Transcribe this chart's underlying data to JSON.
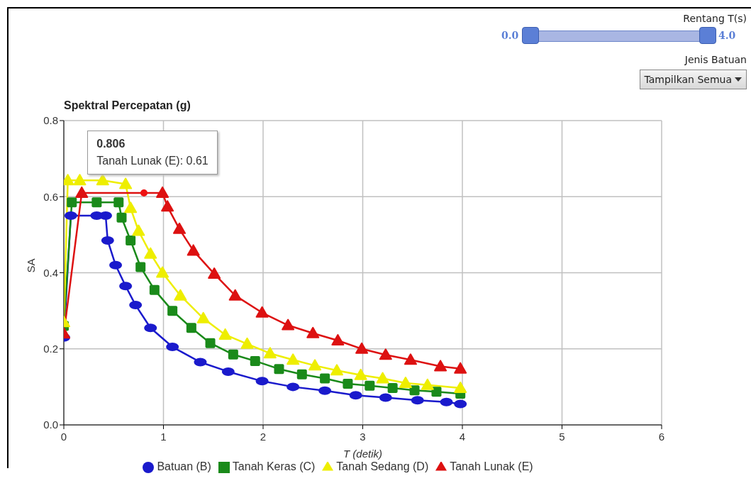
{
  "chart_data": {
    "type": "line",
    "title": "Spektral Percepatan (g)",
    "xlabel": "T (detik)",
    "ylabel": "SA",
    "xlim": [
      0,
      6
    ],
    "xticks": [
      0,
      1,
      2,
      3,
      4,
      5,
      6
    ],
    "ylim": [
      0,
      0.8
    ],
    "yticks": [
      {
        "value": 0,
        "label": "0.0"
      },
      {
        "value": 0.2,
        "label": "0.2"
      },
      {
        "value": 0.4,
        "label": "0.4"
      },
      {
        "value": 0.6,
        "label": "0.6"
      },
      {
        "value": 0.8,
        "label": "0.8"
      }
    ],
    "grid": true,
    "legend": "bottom",
    "line_style": "solid",
    "series": [
      {
        "name": "Batuan (B)",
        "color": "#1a1acc",
        "marker": "circle",
        "x": [
          0,
          0.07,
          0.33,
          0.42,
          0.44,
          0.52,
          0.62,
          0.72,
          0.87,
          1.09,
          1.37,
          1.65,
          1.99,
          2.3,
          2.62,
          2.93,
          3.23,
          3.55,
          3.84,
          3.98
        ],
        "values": [
          0.23,
          0.55,
          0.55,
          0.55,
          0.485,
          0.42,
          0.365,
          0.315,
          0.255,
          0.205,
          0.165,
          0.14,
          0.115,
          0.1,
          0.09,
          0.078,
          0.072,
          0.065,
          0.06,
          0.055
        ]
      },
      {
        "name": "Tanah Keras (C)",
        "color": "#1a8a1a",
        "marker": "square",
        "x": [
          0,
          0.08,
          0.33,
          0.55,
          0.58,
          0.67,
          0.77,
          0.91,
          1.09,
          1.28,
          1.47,
          1.7,
          1.92,
          2.16,
          2.39,
          2.62,
          2.85,
          3.07,
          3.3,
          3.52,
          3.74,
          3.98
        ],
        "values": [
          0.26,
          0.585,
          0.585,
          0.585,
          0.545,
          0.485,
          0.415,
          0.355,
          0.3,
          0.255,
          0.215,
          0.185,
          0.168,
          0.147,
          0.133,
          0.122,
          0.108,
          0.103,
          0.097,
          0.091,
          0.087,
          0.082
        ]
      },
      {
        "name": "Tanah Sedang (D)",
        "color": "#eeee00",
        "marker": "triangle",
        "x": [
          0,
          0.04,
          0.16,
          0.39,
          0.62,
          0.67,
          0.75,
          0.87,
          0.99,
          1.17,
          1.4,
          1.62,
          1.84,
          2.07,
          2.3,
          2.52,
          2.74,
          2.98,
          3.2,
          3.43,
          3.65,
          3.98
        ],
        "values": [
          0.27,
          0.643,
          0.643,
          0.643,
          0.633,
          0.57,
          0.51,
          0.45,
          0.4,
          0.34,
          0.28,
          0.237,
          0.213,
          0.188,
          0.171,
          0.156,
          0.143,
          0.131,
          0.122,
          0.11,
          0.105,
          0.097
        ]
      },
      {
        "name": "Tanah Lunak (E)",
        "color": "#dd1111",
        "marker": "triangle",
        "x": [
          0,
          0.18,
          0.99,
          1.04,
          1.16,
          1.3,
          1.51,
          1.72,
          1.99,
          2.25,
          2.5,
          2.75,
          2.99,
          3.23,
          3.48,
          3.78,
          3.98
        ],
        "values": [
          0.24,
          0.61,
          0.61,
          0.574,
          0.515,
          0.458,
          0.397,
          0.34,
          0.295,
          0.262,
          0.241,
          0.222,
          0.2,
          0.184,
          0.171,
          0.154,
          0.148
        ]
      }
    ],
    "annotations": [
      {
        "text": "0.806\nTanah Lunak (E): 0.61",
        "x": 0.806,
        "y": 0.61
      },
      "Rentang T(s)",
      "0.0",
      "4.0",
      "Jenis Batuan",
      "Tampilkan Semua"
    ]
  }
}
